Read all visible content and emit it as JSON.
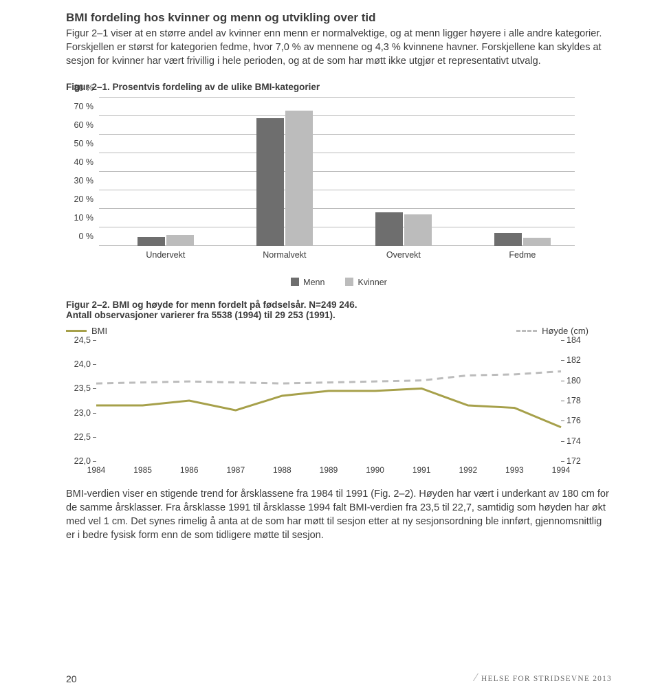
{
  "heading": "BMI fordeling hos kvinner og menn og utvikling over tid",
  "para1": "Figur 2–1 viser at en større andel av kvinner enn menn er normalvektige, og at menn ligger høyere i alle andre kategorier. Forskjellen er størst for kategorien fedme, hvor 7,0 % av mennene og 4,3 % kvinnene havner. Forskjellene kan skyldes at sesjon for kvinner har vært frivillig i hele perioden, og at de som har møtt ikke utgjør et representativt utvalg.",
  "fig1": {
    "caption": "Figur 2–1. Prosentvis fordeling av de ulike BMI-kategorier",
    "type": "bar",
    "ylim": [
      0,
      80
    ],
    "ytick_step": 10,
    "yticks": [
      0,
      10,
      20,
      30,
      40,
      50,
      60,
      70,
      80
    ],
    "ytick_labels": [
      "0 %",
      "10 %",
      "20 %",
      "30 %",
      "40 %",
      "50 %",
      "60 %",
      "70 %",
      "80 %"
    ],
    "categories": [
      "Undervekt",
      "Normalvekt",
      "Overvekt",
      "Fedme"
    ],
    "series": [
      {
        "name": "Menn",
        "color": "#6e6e6e",
        "values": [
          5,
          69,
          18,
          7
        ]
      },
      {
        "name": "Kvinner",
        "color": "#bcbcbc",
        "values": [
          6,
          73,
          17,
          4.3
        ]
      }
    ],
    "grid_color": "#b9b9b9",
    "background_color": "#ffffff",
    "label_fontsize": 12.5
  },
  "legend": {
    "menn": "Menn",
    "kvinner": "Kvinner"
  },
  "fig2": {
    "caption_l1": "Figur 2–2. BMI og høyde for menn fordelt på fødselsår. N=249 246.",
    "caption_l2": "Antall observasjoner varierer fra 5538 (1994) til 29 253 (1991).",
    "type": "line",
    "left_axis": {
      "label": "BMI",
      "color": "#a6a04a",
      "ylim": [
        22.0,
        24.5
      ],
      "ticks": [
        22.0,
        22.5,
        23.0,
        23.5,
        24.0,
        24.5
      ],
      "tick_labels": [
        "22,0",
        "22,5",
        "23,0",
        "23,5",
        "24,0",
        "24,5"
      ]
    },
    "right_axis": {
      "label": "Høyde (cm)",
      "color": "#bcbcbc",
      "ylim": [
        172,
        184
      ],
      "ticks": [
        172,
        174,
        176,
        178,
        180,
        182,
        184
      ],
      "tick_labels": [
        "172",
        "174",
        "176",
        "178",
        "180",
        "182",
        "184"
      ]
    },
    "x": [
      1984,
      1985,
      1986,
      1987,
      1988,
      1989,
      1990,
      1991,
      1992,
      1993,
      1994
    ],
    "x_labels": [
      "1984",
      "1985",
      "1986",
      "1987",
      "1988",
      "1989",
      "1990",
      "1991",
      "1992",
      "1993",
      "1994"
    ],
    "series": [
      {
        "name": "BMI",
        "axis": "left",
        "style": "solid",
        "color": "#a6a04a",
        "width": 3,
        "values": [
          23.15,
          23.15,
          23.25,
          23.05,
          23.35,
          23.45,
          23.45,
          23.5,
          23.15,
          23.1,
          22.7
        ]
      },
      {
        "name": "Høyde",
        "axis": "right",
        "style": "dashed",
        "color": "#bcbcbc",
        "width": 3,
        "values": [
          179.7,
          179.8,
          179.9,
          179.8,
          179.7,
          179.8,
          179.9,
          180.0,
          180.5,
          180.6,
          180.9
        ]
      }
    ],
    "label_fontsize": 12.5
  },
  "para2": "BMI-verdien viser en stigende trend for årsklassene fra 1984 til 1991 (Fig. 2–2). Høyden har vært i underkant av 180 cm for de samme årsklasser. Fra årsklasse 1991 til årsklasse 1994 falt BMI-verdien fra 23,5 til 22,7, samtidig som høyden har økt med vel 1 cm. Det synes rimelig å anta at de som har møtt til sesjon etter at ny sesjonsordning ble innført, gjennomsnittlig er i bedre fysisk form enn de som tidligere møtte til sesjon.",
  "footer": {
    "page": "20",
    "brand": "HELSE FOR STRIDSEVNE 2013"
  }
}
